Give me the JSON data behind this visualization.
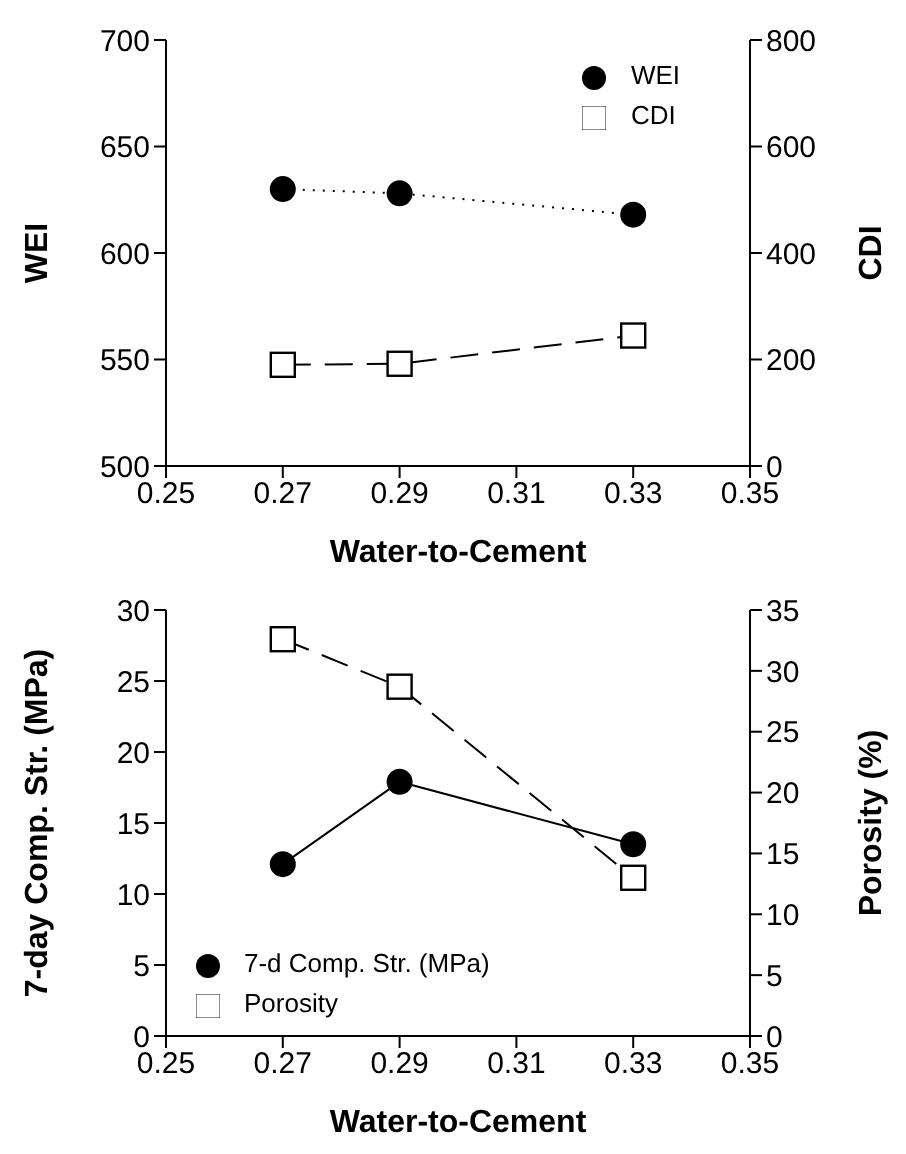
{
  "chart_data": [
    {
      "type": "line",
      "x": [
        0.27,
        0.29,
        0.33
      ],
      "xlabel": "Water-to-Cement",
      "ylabel": "WEI",
      "y2label": "CDI",
      "xlim": [
        0.25,
        0.35
      ],
      "xticks": [
        0.25,
        0.27,
        0.29,
        0.31,
        0.33,
        0.35
      ],
      "ylim": [
        500,
        700
      ],
      "yticks": [
        500,
        550,
        600,
        650,
        700
      ],
      "y2lim": [
        0,
        800
      ],
      "y2ticks": [
        0,
        200,
        400,
        600,
        800
      ],
      "legend": "top right",
      "grid": false,
      "series": [
        {
          "name": "WEI",
          "color": "#000000",
          "values": [
            630,
            628,
            618
          ],
          "marker": "circle",
          "line_style": "dotted"
        },
        {
          "name": "CDI",
          "color": "#000000",
          "values": [
            190,
            192,
            245
          ],
          "marker": "square",
          "line_style": "dashed",
          "axis": "y2"
        }
      ]
    },
    {
      "type": "line",
      "x": [
        0.27,
        0.29,
        0.33
      ],
      "xlabel": "Water-to-Cement",
      "ylabel": "7-day Comp. Str. (MPa)",
      "y2label": "Porosity (%)",
      "xlim": [
        0.25,
        0.35
      ],
      "xticks": [
        0.25,
        0.27,
        0.29,
        0.31,
        0.33,
        0.35
      ],
      "ylim": [
        0,
        30
      ],
      "yticks": [
        0,
        5,
        10,
        15,
        20,
        25,
        30
      ],
      "y2lim": [
        0,
        35
      ],
      "y2ticks": [
        0,
        5,
        10,
        15,
        20,
        25,
        30,
        35
      ],
      "legend": "bottom left",
      "grid": false,
      "series": [
        {
          "name": "7-d Comp. Str. (MPa)",
          "color": "#000000",
          "values": [
            12.1,
            17.9,
            13.5
          ],
          "marker": "circle",
          "line_style": "solid"
        },
        {
          "name": "Porosity",
          "color": "#000000",
          "values": [
            32.6,
            28.7,
            13.0
          ],
          "marker": "square",
          "line_style": "dashed",
          "axis": "y2"
        }
      ]
    }
  ]
}
